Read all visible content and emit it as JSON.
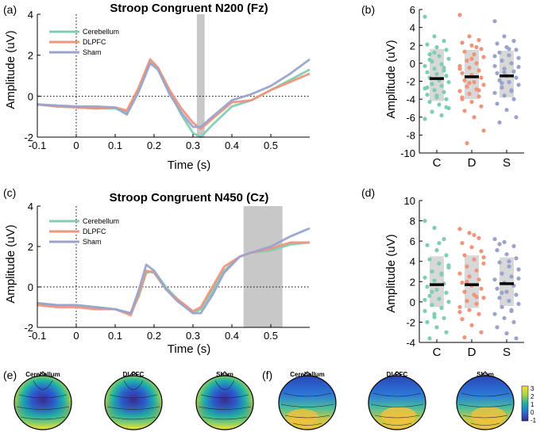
{
  "colors": {
    "cerebellum": "#7fcdb2",
    "dlpfc": "#f0947a",
    "sham": "#9aa3cc",
    "window": "#c8c8c8",
    "iqr": "#d8d8d8"
  },
  "topo": {
    "labels_e": [
      "Cerebellum",
      "DLPFC",
      "Sham"
    ],
    "labels_f": [
      "Cerebellum",
      "DLPFC",
      "Sham"
    ],
    "colorbar_ticks": [
      "3",
      "2",
      "1",
      "0",
      "-1"
    ]
  },
  "chart_data": [
    {
      "id": "a",
      "panel_label": "(a)",
      "type": "line",
      "title": "Stroop Congruent N200 (Fz)",
      "xlabel": "Time (s)",
      "ylabel": "Amplitude (uV)",
      "xlim": [
        -0.1,
        0.6
      ],
      "ylim": [
        -2,
        4
      ],
      "xticks": [
        -0.1,
        0,
        0.1,
        0.2,
        0.3,
        0.4,
        0.5
      ],
      "xtick_labels": [
        "-0.1",
        "0",
        "0.1",
        "0.2",
        "0.3",
        "0.4",
        "0.5"
      ],
      "yticks": [
        -2,
        0,
        2,
        4
      ],
      "ytick_labels": [
        "-2",
        "0",
        "2",
        "4"
      ],
      "window": [
        0.31,
        0.33
      ],
      "legend": [
        "Cerebellum",
        "DLPFC",
        "Sham"
      ],
      "series": [
        {
          "name": "Cerebellum",
          "x": [
            -0.1,
            -0.05,
            0,
            0.05,
            0.1,
            0.13,
            0.16,
            0.19,
            0.21,
            0.24,
            0.27,
            0.3,
            0.32,
            0.35,
            0.4,
            0.45,
            0.5,
            0.55,
            0.6
          ],
          "y": [
            -0.4,
            -0.5,
            -0.55,
            -0.6,
            -0.6,
            -0.8,
            0.3,
            1.7,
            1.4,
            0.2,
            -0.9,
            -1.8,
            -2.0,
            -1.4,
            -0.5,
            -0.2,
            0.3,
            0.8,
            1.3
          ]
        },
        {
          "name": "DLPFC",
          "x": [
            -0.1,
            -0.05,
            0,
            0.05,
            0.1,
            0.13,
            0.16,
            0.19,
            0.21,
            0.24,
            0.27,
            0.3,
            0.32,
            0.35,
            0.4,
            0.45,
            0.5,
            0.55,
            0.6
          ],
          "y": [
            -0.4,
            -0.5,
            -0.55,
            -0.6,
            -0.55,
            -0.7,
            0.4,
            1.8,
            1.4,
            0.3,
            -0.6,
            -1.3,
            -1.6,
            -1.1,
            -0.3,
            -0.2,
            0.3,
            0.7,
            1.1
          ]
        },
        {
          "name": "Sham",
          "x": [
            -0.1,
            -0.05,
            0,
            0.05,
            0.1,
            0.13,
            0.16,
            0.19,
            0.21,
            0.24,
            0.27,
            0.3,
            0.32,
            0.35,
            0.4,
            0.45,
            0.5,
            0.55,
            0.6
          ],
          "y": [
            -0.4,
            -0.45,
            -0.5,
            -0.5,
            -0.55,
            -0.9,
            0.2,
            1.6,
            1.3,
            0.1,
            -0.8,
            -1.5,
            -1.5,
            -1.0,
            -0.2,
            0.1,
            0.5,
            1.1,
            1.8
          ]
        }
      ]
    },
    {
      "id": "b",
      "panel_label": "(b)",
      "type": "scatter",
      "ylabel": "Amplitude (uV)",
      "ylim": [
        -10,
        6
      ],
      "yticks": [
        -10,
        -8,
        -6,
        -4,
        -2,
        0,
        2,
        4,
        6
      ],
      "ytick_labels": [
        "-10",
        "-8",
        "-6",
        "-4",
        "-2",
        "0",
        "2",
        "4",
        "6"
      ],
      "categories": [
        "C",
        "D",
        "S"
      ],
      "means": [
        -1.7,
        -1.5,
        -1.4
      ],
      "iqr": [
        [
          -4.2,
          1.6
        ],
        [
          -4.0,
          1.5
        ],
        [
          -3.8,
          1.4
        ]
      ],
      "points": [
        [
          5.2,
          3.0,
          2.5,
          2.1,
          1.8,
          1.5,
          1.0,
          0.8,
          0.5,
          0.2,
          -0.1,
          -0.3,
          -0.6,
          -0.8,
          -1.0,
          -1.2,
          -1.4,
          -1.6,
          -1.9,
          -2.1,
          -2.3,
          -2.5,
          -2.8,
          -3.0,
          -3.2,
          -3.5,
          -3.8,
          -4.0,
          -4.3,
          -4.6,
          -5.0,
          -5.4,
          -5.8,
          -6.2,
          1.2,
          -0.5,
          -2.7,
          -3.6,
          -4.9,
          0.4
        ],
        [
          5.4,
          3.0,
          2.6,
          2.3,
          2.0,
          1.6,
          1.3,
          1.0,
          0.7,
          0.3,
          0.0,
          -0.3,
          -0.5,
          -0.8,
          -1.1,
          -1.3,
          -1.6,
          -1.9,
          -2.1,
          -2.4,
          -2.6,
          -2.9,
          -3.1,
          -3.4,
          -3.7,
          -4.0,
          -4.3,
          -4.8,
          -5.3,
          -6.0,
          -7.5,
          -8.9,
          1.8,
          -0.6,
          -2.2,
          -3.0,
          -3.8,
          0.5
        ],
        [
          4.7,
          3.0,
          2.5,
          2.2,
          1.8,
          1.5,
          1.2,
          0.9,
          0.6,
          0.3,
          0.0,
          -0.3,
          -0.6,
          -0.9,
          -1.1,
          -1.4,
          -1.6,
          -1.9,
          -2.1,
          -2.4,
          -2.7,
          -3.0,
          -3.3,
          -3.6,
          -4.0,
          -4.5,
          -5.2,
          -6.0,
          -6.6,
          1.6,
          -0.4,
          -2.2,
          -3.1,
          0.8,
          -1.0
        ]
      ]
    },
    {
      "id": "c",
      "panel_label": "(c)",
      "type": "line",
      "title": "Stroop Congruent N450 (Cz)",
      "xlabel": "Time (s)",
      "ylabel": "Amplitude (uV)",
      "xlim": [
        -0.1,
        0.6
      ],
      "ylim": [
        -2,
        4
      ],
      "xticks": [
        -0.1,
        0,
        0.1,
        0.2,
        0.3,
        0.4,
        0.5
      ],
      "xtick_labels": [
        "-0.1",
        "0",
        "0.1",
        "0.2",
        "0.3",
        "0.4",
        "0.5"
      ],
      "yticks": [
        -2,
        0,
        2,
        4
      ],
      "ytick_labels": [
        "-2",
        "0",
        "2",
        "4"
      ],
      "window": [
        0.43,
        0.53
      ],
      "legend": [
        "Cerebellum",
        "DLPFC",
        "Sham"
      ],
      "series": [
        {
          "name": "Cerebellum",
          "x": [
            -0.1,
            -0.05,
            0,
            0.05,
            0.1,
            0.14,
            0.16,
            0.18,
            0.2,
            0.23,
            0.26,
            0.3,
            0.32,
            0.35,
            0.38,
            0.42,
            0.45,
            0.5,
            0.55,
            0.6
          ],
          "y": [
            -0.8,
            -0.9,
            -0.9,
            -1.0,
            -1.1,
            -1.3,
            -0.5,
            0.7,
            0.8,
            0.0,
            -0.6,
            -1.3,
            -1.1,
            -0.2,
            0.8,
            1.5,
            1.7,
            1.8,
            2.1,
            2.2
          ]
        },
        {
          "name": "DLPFC",
          "x": [
            -0.1,
            -0.05,
            0,
            0.05,
            0.1,
            0.14,
            0.16,
            0.18,
            0.2,
            0.23,
            0.26,
            0.3,
            0.32,
            0.35,
            0.38,
            0.42,
            0.45,
            0.5,
            0.55,
            0.6
          ],
          "y": [
            -0.9,
            -1.0,
            -1.0,
            -1.1,
            -1.1,
            -1.4,
            -0.4,
            0.8,
            0.7,
            -0.1,
            -0.6,
            -1.2,
            -1.0,
            0.0,
            1.0,
            1.5,
            1.7,
            1.9,
            2.2,
            2.2
          ]
        },
        {
          "name": "Sham",
          "x": [
            -0.1,
            -0.05,
            0,
            0.05,
            0.1,
            0.14,
            0.16,
            0.18,
            0.2,
            0.23,
            0.26,
            0.3,
            0.32,
            0.35,
            0.38,
            0.42,
            0.45,
            0.5,
            0.55,
            0.6
          ],
          "y": [
            -0.8,
            -0.9,
            -0.9,
            -1.0,
            -1.1,
            -1.3,
            -0.2,
            1.1,
            0.8,
            -0.1,
            -0.7,
            -1.3,
            -1.3,
            -0.4,
            0.7,
            1.5,
            1.7,
            2.0,
            2.5,
            2.9
          ]
        }
      ]
    },
    {
      "id": "d",
      "panel_label": "(d)",
      "type": "scatter",
      "ylabel": "Amplitude (uV)",
      "ylim": [
        -4,
        10
      ],
      "yticks": [
        -4,
        -2,
        0,
        2,
        4,
        6,
        8,
        10
      ],
      "ytick_labels": [
        "-4",
        "-2",
        "0",
        "2",
        "4",
        "6",
        "8",
        "10"
      ],
      "categories": [
        "C",
        "D",
        "S"
      ],
      "means": [
        1.7,
        1.7,
        1.8
      ],
      "iqr": [
        [
          -0.5,
          4.5
        ],
        [
          -0.6,
          4.6
        ],
        [
          -0.4,
          4.4
        ]
      ],
      "points": [
        [
          8.0,
          7.3,
          6.2,
          5.6,
          5.1,
          4.6,
          4.2,
          3.8,
          3.4,
          3.0,
          2.7,
          2.4,
          2.1,
          1.8,
          1.5,
          1.2,
          0.9,
          0.6,
          0.3,
          0.0,
          -0.3,
          -0.6,
          -0.9,
          -1.2,
          -1.6,
          -2.0,
          -2.5,
          -3.0,
          -3.6,
          5.8,
          3.6,
          1.0,
          2.8,
          0.2,
          -1.5
        ],
        [
          7.2,
          6.8,
          6.3,
          5.8,
          5.4,
          5.0,
          4.6,
          4.2,
          3.8,
          3.5,
          3.1,
          2.8,
          2.5,
          2.2,
          1.9,
          1.6,
          1.3,
          1.0,
          0.7,
          0.4,
          0.1,
          -0.2,
          -0.5,
          -0.8,
          -1.2,
          -1.7,
          -2.3,
          -3.0,
          -3.5,
          6.6,
          4.4,
          2.0,
          0.5,
          -1.0
        ],
        [
          6.2,
          5.9,
          5.5,
          5.1,
          4.7,
          4.3,
          3.9,
          3.5,
          3.2,
          2.8,
          2.5,
          2.2,
          1.9,
          1.6,
          1.3,
          1.0,
          0.7,
          0.4,
          0.1,
          -0.2,
          -0.5,
          -0.8,
          -1.2,
          -1.6,
          -2.0,
          -2.5,
          -3.1,
          -3.6,
          5.7,
          4.0,
          2.3,
          0.9,
          -0.9
        ]
      ]
    }
  ]
}
